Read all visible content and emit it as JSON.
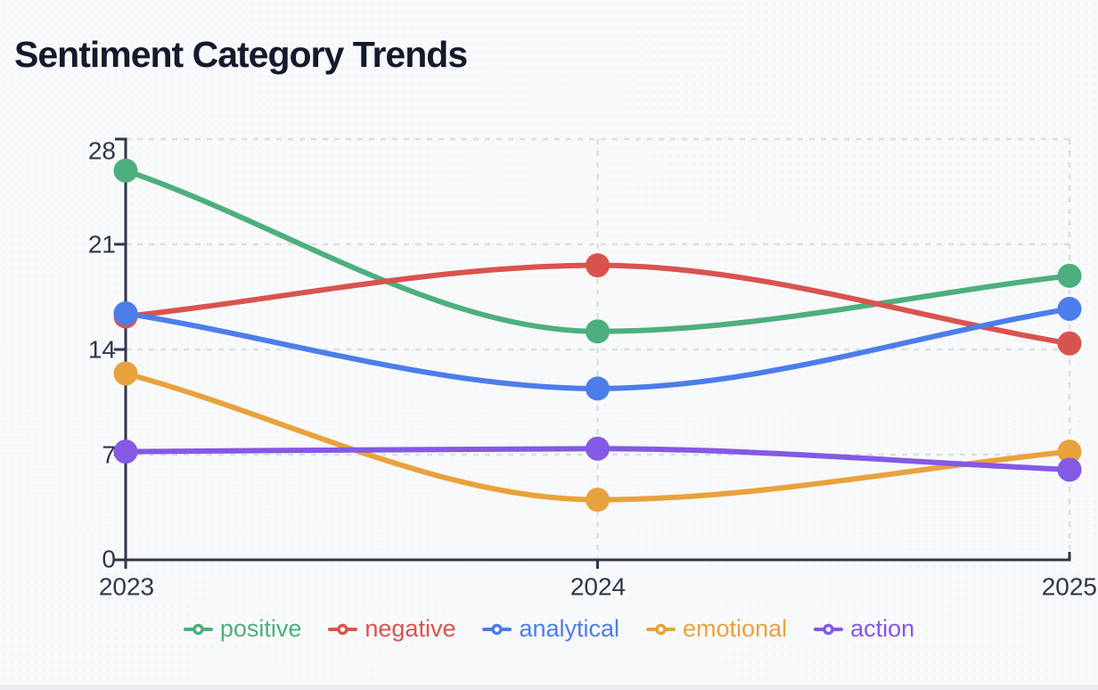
{
  "chart_data": {
    "type": "line",
    "title": "Sentiment Category Trends",
    "categories": [
      "2023",
      "2024",
      "2025"
    ],
    "series": [
      {
        "name": "positive",
        "color": "#4daf7d",
        "values": [
          25.9,
          15.2,
          18.9
        ]
      },
      {
        "name": "negative",
        "color": "#d9534e",
        "values": [
          16.2,
          19.6,
          14.4
        ]
      },
      {
        "name": "analytical",
        "color": "#4c7dea",
        "values": [
          16.4,
          11.4,
          16.7
        ]
      },
      {
        "name": "emotional",
        "color": "#e8a23c",
        "values": [
          12.4,
          4.0,
          7.2
        ]
      },
      {
        "name": "action",
        "color": "#8459e4",
        "values": [
          7.2,
          7.4,
          6.0
        ]
      }
    ],
    "y_ticks": [
      28,
      21,
      14,
      7,
      0
    ],
    "ylim": [
      0,
      28
    ],
    "xlabel": "",
    "ylabel": "",
    "grid": "dashed",
    "curve": "monotone",
    "legend_position": "bottom"
  },
  "colors": {
    "background": "#f8f9fa",
    "dot_texture": "#eef0f2",
    "title": "#141a2b",
    "axis": "#2e3849",
    "grid": "#dcdfe4",
    "bottom_strip": "#e9ebee"
  }
}
